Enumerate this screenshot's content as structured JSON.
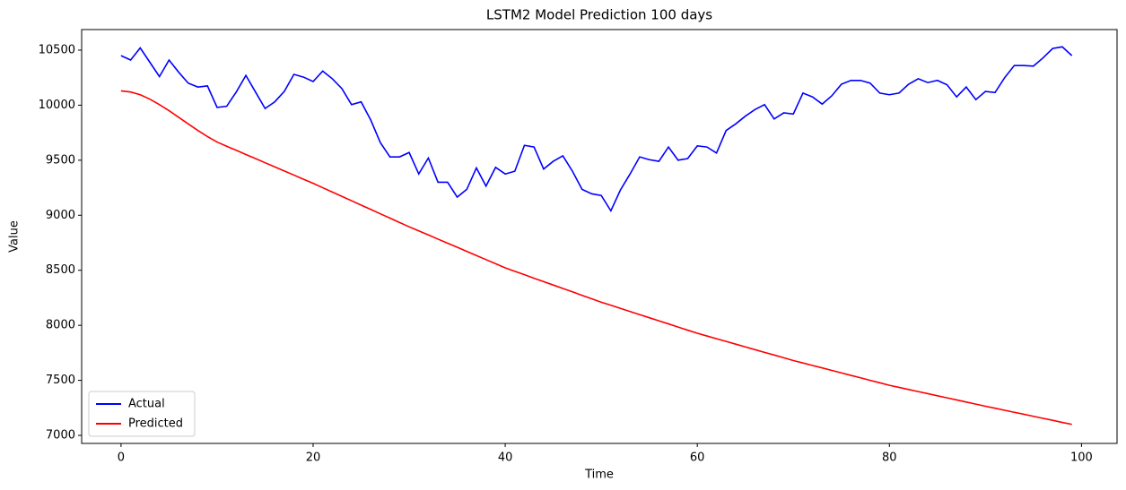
{
  "chart_data": {
    "type": "line",
    "title": "LSTM2 Model Prediction 100 days",
    "x_label": "Time",
    "y_label": "Value",
    "x": [
      0,
      1,
      2,
      3,
      4,
      5,
      6,
      7,
      8,
      9,
      10,
      11,
      12,
      13,
      14,
      15,
      16,
      17,
      18,
      19,
      20,
      21,
      22,
      23,
      24,
      25,
      26,
      27,
      28,
      29,
      30,
      31,
      32,
      33,
      34,
      35,
      36,
      37,
      38,
      39,
      40,
      41,
      42,
      43,
      44,
      45,
      46,
      47,
      48,
      49,
      50,
      51,
      52,
      53,
      54,
      55,
      56,
      57,
      58,
      59,
      60,
      61,
      62,
      63,
      64,
      65,
      66,
      67,
      68,
      69,
      70,
      71,
      72,
      73,
      74,
      75,
      76,
      77,
      78,
      79,
      80,
      81,
      82,
      83,
      84,
      85,
      86,
      87,
      88,
      89,
      90,
      91,
      92,
      93,
      94,
      95,
      96,
      97,
      98,
      99
    ],
    "series": [
      {
        "name": "Actual",
        "color": "#0000ff",
        "values": [
          10450,
          10410,
          10520,
          10390,
          10260,
          10410,
          10300,
          10200,
          10165,
          10175,
          9980,
          9990,
          10120,
          10270,
          10120,
          9970,
          10030,
          10125,
          10280,
          10255,
          10215,
          10310,
          10240,
          10150,
          10005,
          10030,
          9865,
          9660,
          9530,
          9530,
          9570,
          9375,
          9520,
          9300,
          9300,
          9165,
          9235,
          9430,
          9265,
          9435,
          9375,
          9400,
          9635,
          9620,
          9420,
          9490,
          9540,
          9400,
          9235,
          9195,
          9180,
          9040,
          9230,
          9375,
          9530,
          9505,
          9490,
          9620,
          9500,
          9515,
          9630,
          9620,
          9565,
          9770,
          9830,
          9900,
          9960,
          10005,
          9875,
          9930,
          9920,
          10110,
          10075,
          10010,
          10085,
          10190,
          10225,
          10225,
          10200,
          10110,
          10095,
          10110,
          10190,
          10240,
          10205,
          10225,
          10185,
          10075,
          10165,
          10050,
          10125,
          10115,
          10250,
          10360,
          10360,
          10355,
          10430,
          10515,
          10530,
          10450
        ]
      },
      {
        "name": "Predicted",
        "color": "#ff0000",
        "values": [
          10130,
          10120,
          10095,
          10055,
          10005,
          9950,
          9890,
          9830,
          9770,
          9715,
          9665,
          9627,
          9590,
          9552,
          9515,
          9477,
          9440,
          9402,
          9365,
          9327,
          9290,
          9250,
          9211,
          9171,
          9132,
          9092,
          9053,
          9013,
          8974,
          8934,
          8895,
          8858,
          8821,
          8783,
          8746,
          8709,
          8672,
          8634,
          8597,
          8560,
          8522,
          8491,
          8460,
          8428,
          8397,
          8366,
          8335,
          8304,
          8272,
          8241,
          8210,
          8182,
          8154,
          8125,
          8097,
          8069,
          8041,
          8013,
          7984,
          7956,
          7928,
          7903,
          7878,
          7854,
          7829,
          7804,
          7779,
          7754,
          7730,
          7705,
          7680,
          7658,
          7635,
          7613,
          7590,
          7568,
          7545,
          7523,
          7500,
          7478,
          7455,
          7436,
          7417,
          7398,
          7379,
          7360,
          7341,
          7322,
          7303,
          7284,
          7265,
          7247,
          7228,
          7210,
          7192,
          7173,
          7155,
          7137,
          7118,
          7100
        ]
      }
    ],
    "xlim": [
      -4.1,
      103.7
    ],
    "xticks": [
      0,
      20,
      40,
      60,
      80,
      100
    ],
    "ylim": [
      6927,
      10687
    ],
    "yticks": [
      7000,
      7500,
      8000,
      8500,
      9000,
      9500,
      10000,
      10500
    ],
    "grid": false,
    "legend": "lower left"
  }
}
